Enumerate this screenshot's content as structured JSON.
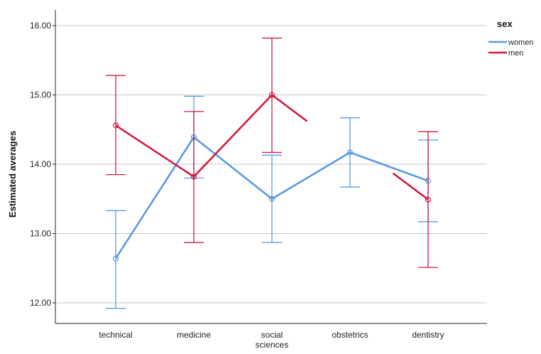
{
  "chart_data": {
    "type": "line",
    "ylabel": "Estimated averages",
    "ylim": [
      11.9,
      16.2
    ],
    "yticks": [
      "12.00",
      "13.00",
      "14.00",
      "15.00",
      "16.00"
    ],
    "grid": true,
    "legend_position": "top-right",
    "legend_title": "sex",
    "categories": [
      "technical",
      "medicine",
      "social sciences",
      "obstetrics",
      "dentistry"
    ],
    "series": [
      {
        "name": "women",
        "color": "#5b9bdf",
        "values": [
          12.64,
          14.39,
          13.5,
          14.17,
          13.76
        ],
        "error_low": [
          11.92,
          13.8,
          12.87,
          13.67,
          13.17
        ],
        "error_high": [
          13.33,
          14.98,
          14.13,
          14.67,
          14.35
        ],
        "segments": [
          [
            0,
            4
          ]
        ]
      },
      {
        "name": "men",
        "color": "#d01c3d",
        "values": [
          14.56,
          13.82,
          15.0,
          null,
          13.49
        ],
        "error_low": [
          13.85,
          12.87,
          14.17,
          null,
          12.51
        ],
        "error_high": [
          15.28,
          14.76,
          15.82,
          null,
          14.47
        ],
        "segments": [
          [
            0,
            2
          ]
        ],
        "stubs": [
          {
            "from_index": 2,
            "to_x": 2.45,
            "to_y": 14.62
          },
          {
            "to_index": 4,
            "from_x": 3.55,
            "from_y": 13.87
          }
        ]
      }
    ]
  }
}
